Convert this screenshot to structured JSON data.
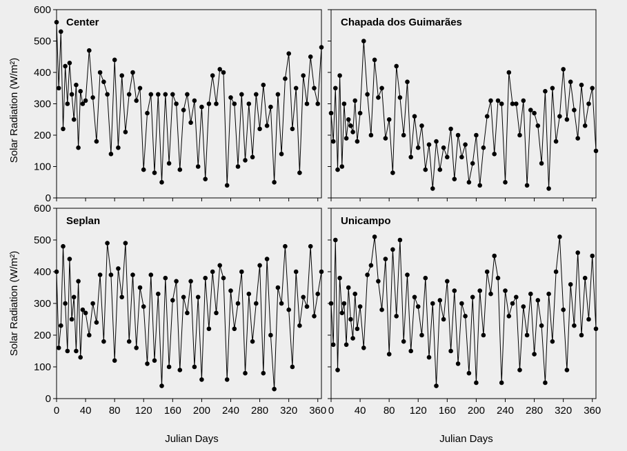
{
  "chart_data": {
    "type": "line",
    "layout": "2x2 panels",
    "ylabel": "Solar Radiation (W/m²)",
    "xlabel": "Julian Days",
    "xlim": [
      0,
      365
    ],
    "ylim": [
      0,
      600
    ],
    "xticks": [
      "0",
      "40",
      "80",
      "120",
      "160",
      "200",
      "240",
      "280",
      "320",
      "360"
    ],
    "yticks": [
      "0",
      "100",
      "200",
      "300",
      "400",
      "500",
      "600"
    ],
    "grid": false,
    "marker": "circle",
    "line_color": "#000000",
    "marker_color": "#000000",
    "panels": [
      {
        "title": "Center",
        "series": [
          {
            "x": [
              0,
              3,
              6,
              9,
              12,
              15,
              18,
              21,
              24,
              27,
              30,
              33,
              36,
              40,
              45,
              50,
              55,
              60,
              65,
              70,
              75,
              80,
              85,
              90,
              95,
              100,
              105,
              110,
              115,
              120,
              125,
              130,
              135,
              140,
              145,
              150,
              155,
              160,
              165,
              170,
              175,
              180,
              185,
              190,
              195,
              200,
              205,
              210,
              215,
              220,
              225,
              230,
              235,
              240,
              245,
              250,
              255,
              260,
              265,
              270,
              275,
              280,
              285,
              290,
              295,
              300,
              305,
              310,
              315,
              320,
              325,
              330,
              335,
              340,
              345,
              350,
              355,
              360,
              365
            ],
            "y": [
              560,
              350,
              530,
              220,
              420,
              300,
              430,
              330,
              250,
              360,
              160,
              340,
              300,
              310,
              470,
              320,
              180,
              400,
              370,
              330,
              140,
              440,
              160,
              390,
              210,
              330,
              400,
              310,
              350,
              90,
              270,
              330,
              80,
              330,
              50,
              330,
              110,
              330,
              300,
              90,
              280,
              330,
              240,
              310,
              100,
              290,
              60,
              300,
              390,
              300,
              410,
              400,
              40,
              320,
              300,
              100,
              330,
              120,
              300,
              130,
              330,
              220,
              360,
              230,
              290,
              50,
              330,
              140,
              380,
              460,
              220,
              350,
              80,
              390,
              300,
              450,
              350,
              300,
              480
            ]
          }
        ]
      },
      {
        "title": "Chapada dos Guimarães",
        "series": [
          {
            "x": [
              0,
              3,
              6,
              9,
              12,
              15,
              18,
              21,
              24,
              27,
              30,
              33,
              36,
              40,
              45,
              50,
              55,
              60,
              65,
              70,
              75,
              80,
              85,
              90,
              95,
              100,
              105,
              110,
              115,
              120,
              125,
              130,
              135,
              140,
              145,
              150,
              155,
              160,
              165,
              170,
              175,
              180,
              185,
              190,
              195,
              200,
              205,
              210,
              215,
              220,
              225,
              230,
              235,
              240,
              245,
              250,
              255,
              260,
              265,
              270,
              275,
              280,
              285,
              290,
              295,
              300,
              305,
              310,
              315,
              320,
              325,
              330,
              335,
              340,
              345,
              350,
              355,
              360,
              365
            ],
            "y": [
              270,
              180,
              350,
              90,
              390,
              100,
              300,
              190,
              250,
              230,
              210,
              310,
              180,
              270,
              500,
              330,
              200,
              440,
              320,
              350,
              190,
              250,
              80,
              420,
              320,
              200,
              370,
              130,
              260,
              160,
              230,
              90,
              170,
              30,
              180,
              90,
              160,
              130,
              220,
              60,
              200,
              130,
              170,
              50,
              110,
              200,
              40,
              160,
              260,
              310,
              140,
              310,
              300,
              50,
              400,
              300,
              300,
              200,
              310,
              40,
              280,
              270,
              230,
              110,
              340,
              30,
              350,
              180,
              260,
              410,
              250,
              370,
              280,
              190,
              360,
              230,
              300,
              350,
              150
            ]
          }
        ]
      },
      {
        "title": "Seplan",
        "series": [
          {
            "x": [
              0,
              3,
              6,
              9,
              12,
              15,
              18,
              21,
              24,
              27,
              30,
              33,
              36,
              40,
              45,
              50,
              55,
              60,
              65,
              70,
              75,
              80,
              85,
              90,
              95,
              100,
              105,
              110,
              115,
              120,
              125,
              130,
              135,
              140,
              145,
              150,
              155,
              160,
              165,
              170,
              175,
              180,
              185,
              190,
              195,
              200,
              205,
              210,
              215,
              220,
              225,
              230,
              235,
              240,
              245,
              250,
              255,
              260,
              265,
              270,
              275,
              280,
              285,
              290,
              295,
              300,
              305,
              310,
              315,
              320,
              325,
              330,
              335,
              340,
              345,
              350,
              355,
              360,
              365
            ],
            "y": [
              400,
              160,
              230,
              480,
              300,
              150,
              440,
              250,
              320,
              150,
              370,
              130,
              280,
              270,
              200,
              300,
              240,
              390,
              180,
              490,
              390,
              120,
              410,
              320,
              490,
              180,
              390,
              160,
              350,
              290,
              110,
              390,
              120,
              330,
              40,
              380,
              100,
              310,
              370,
              90,
              320,
              270,
              370,
              100,
              320,
              60,
              380,
              220,
              400,
              270,
              420,
              380,
              60,
              340,
              220,
              300,
              400,
              80,
              330,
              180,
              300,
              420,
              80,
              440,
              200,
              30,
              350,
              300,
              480,
              280,
              100,
              400,
              230,
              320,
              290,
              480,
              260,
              330,
              400
            ]
          }
        ]
      },
      {
        "title": "Unicampo",
        "series": [
          {
            "x": [
              0,
              3,
              6,
              9,
              12,
              15,
              18,
              21,
              24,
              27,
              30,
              33,
              36,
              40,
              45,
              50,
              55,
              60,
              65,
              70,
              75,
              80,
              85,
              90,
              95,
              100,
              105,
              110,
              115,
              120,
              125,
              130,
              135,
              140,
              145,
              150,
              155,
              160,
              165,
              170,
              175,
              180,
              185,
              190,
              195,
              200,
              205,
              210,
              215,
              220,
              225,
              230,
              235,
              240,
              245,
              250,
              255,
              260,
              265,
              270,
              275,
              280,
              285,
              290,
              295,
              300,
              305,
              310,
              315,
              320,
              325,
              330,
              335,
              340,
              345,
              350,
              355,
              360,
              365
            ],
            "y": [
              300,
              170,
              500,
              90,
              380,
              270,
              300,
              170,
              350,
              250,
              190,
              330,
              220,
              290,
              160,
              390,
              420,
              510,
              370,
              280,
              440,
              140,
              470,
              260,
              500,
              180,
              390,
              150,
              320,
              290,
              200,
              380,
              130,
              300,
              40,
              310,
              250,
              370,
              150,
              340,
              110,
              300,
              260,
              80,
              320,
              50,
              340,
              200,
              400,
              330,
              450,
              380,
              50,
              340,
              260,
              300,
              320,
              90,
              290,
              200,
              330,
              140,
              310,
              230,
              50,
              330,
              180,
              400,
              510,
              280,
              90,
              360,
              230,
              460,
              200,
              380,
              250,
              450,
              220
            ]
          }
        ]
      }
    ]
  }
}
